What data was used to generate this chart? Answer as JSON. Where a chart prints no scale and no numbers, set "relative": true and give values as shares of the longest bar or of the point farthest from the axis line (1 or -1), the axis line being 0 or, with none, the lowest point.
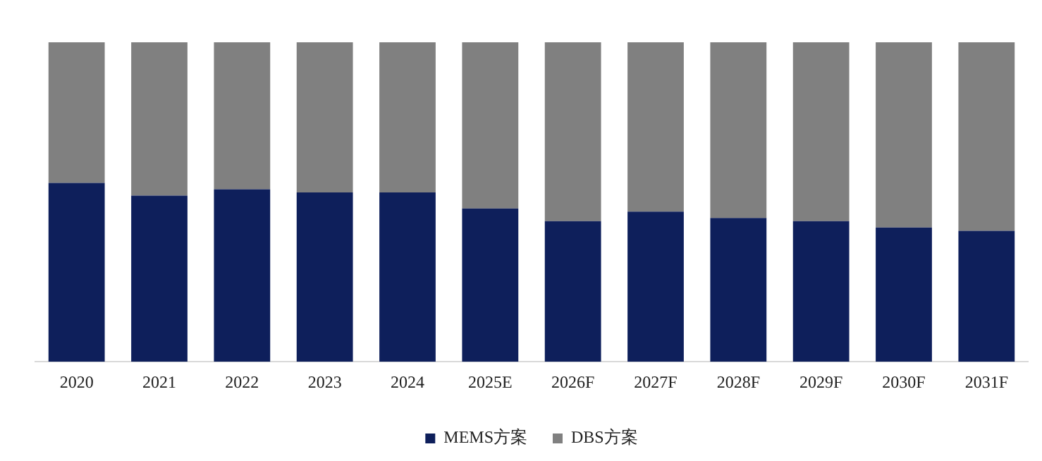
{
  "chart_data": {
    "type": "bar",
    "stacked": true,
    "relative": true,
    "legend": "bottom",
    "grid": false,
    "categories": [
      "2020",
      "2021",
      "2022",
      "2023",
      "2024",
      "2025E",
      "2026F",
      "2027F",
      "2028F",
      "2029F",
      "2030F",
      "2031F"
    ],
    "series": [
      {
        "name": "MEMS方案",
        "color": "#0e1f5b",
        "values": [
          0.56,
          0.52,
          0.54,
          0.53,
          0.53,
          0.48,
          0.44,
          0.47,
          0.45,
          0.44,
          0.42,
          0.41
        ]
      },
      {
        "name": "DBS方案",
        "color": "#808080",
        "values": [
          0.44,
          0.48,
          0.46,
          0.47,
          0.47,
          0.52,
          0.56,
          0.53,
          0.55,
          0.56,
          0.58,
          0.59
        ]
      }
    ]
  }
}
